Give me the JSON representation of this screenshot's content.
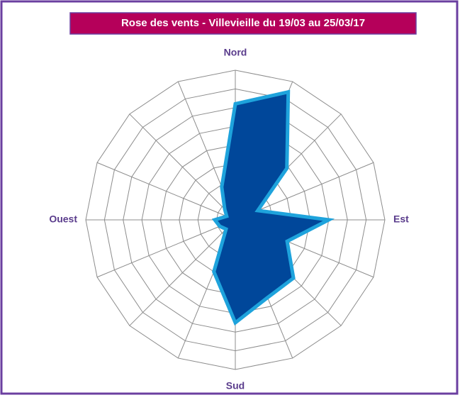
{
  "chart_data": {
    "type": "radar",
    "title": "Rose des vents - Villevieille du 19/03 au 25/03/17",
    "categories": [
      "Nord",
      null,
      null,
      null,
      "Est",
      null,
      null,
      null,
      "Sud",
      null,
      null,
      null,
      "Ouest",
      null,
      null,
      null
    ],
    "values": [
      6.2,
      7.4,
      3.9,
      1.3,
      5.0,
      3.0,
      4.4,
      4.5,
      5.5,
      3.0,
      0.7,
      0.9,
      1.1,
      0.5,
      0.8,
      1.9
    ],
    "color": "#00479a",
    "edge_color": "#1ea3dc",
    "ylim": [
      0,
      8
    ],
    "yticks": [
      1,
      2,
      3,
      4,
      5,
      6,
      7,
      8
    ],
    "grid": true
  }
}
